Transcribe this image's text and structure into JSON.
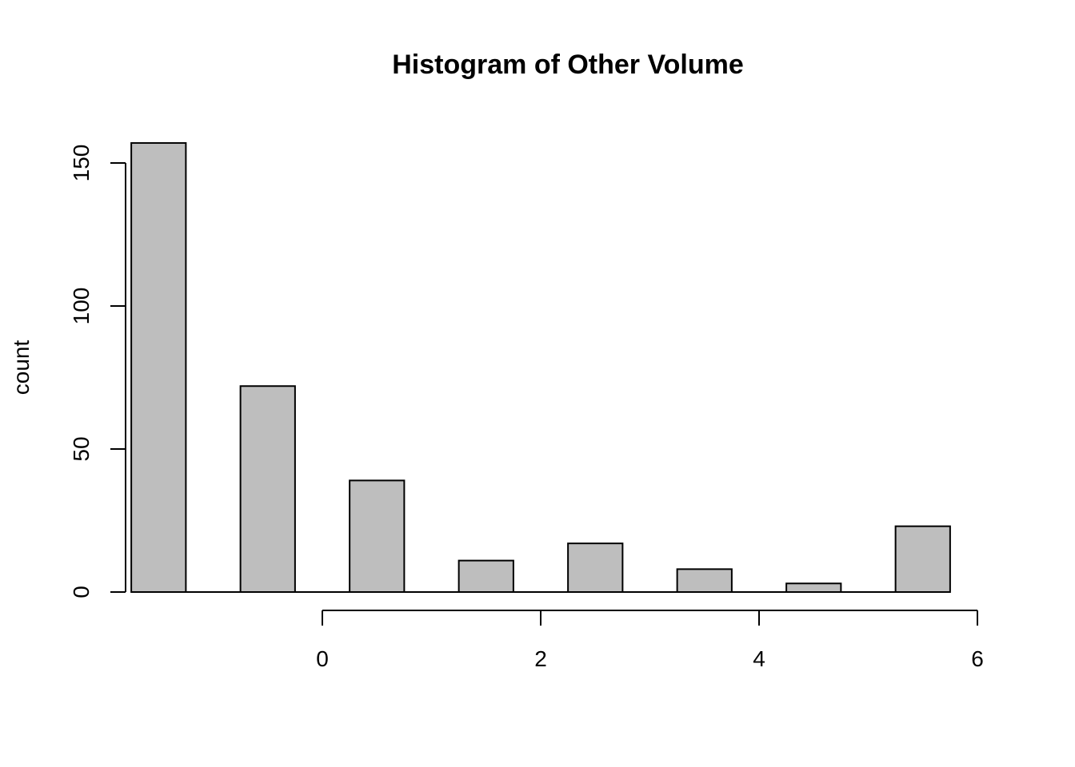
{
  "chart_data": {
    "type": "bar",
    "title": "Histogram of Other Volume",
    "xlabel": "",
    "ylabel": "count",
    "categories": [
      "-1.5",
      "-0.5",
      "0.5",
      "1.5",
      "2.5",
      "3.5",
      "4.5",
      "5.5"
    ],
    "values": [
      157,
      72,
      39,
      11,
      17,
      8,
      3,
      23
    ],
    "x_ticks": [
      0,
      2,
      4,
      6
    ],
    "x_tick_labels": [
      "0",
      "2",
      "4",
      "6"
    ],
    "y_ticks": [
      0,
      50,
      100,
      150
    ],
    "y_tick_labels": [
      "0",
      "50",
      "100",
      "150"
    ],
    "ylim": [
      0,
      157
    ],
    "grid": false,
    "bar_color": "#bebebe"
  }
}
